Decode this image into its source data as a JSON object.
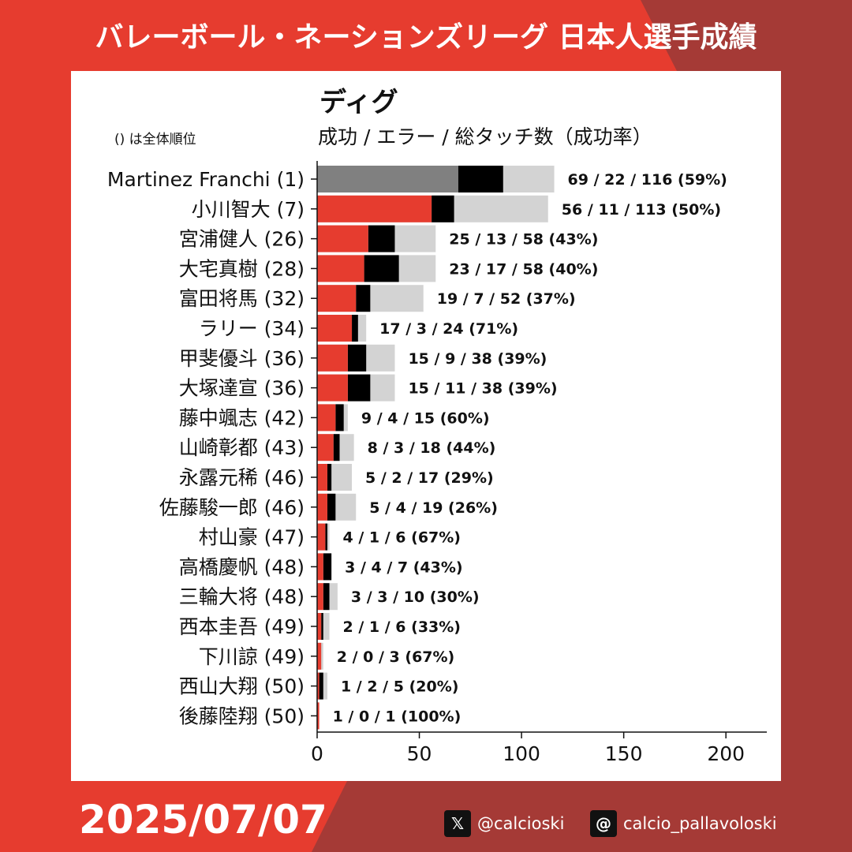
{
  "header": {
    "title": "バレーボール・ネーションズリーグ 日本人選手成績"
  },
  "chart_note": "() は全体順位",
  "footer": {
    "date": "2025/07/07",
    "social": [
      {
        "icon": "x-logo-icon",
        "handle": "@calcioski"
      },
      {
        "icon": "threads-logo-icon",
        "handle": "calcio_pallavoloski"
      }
    ]
  },
  "colors": {
    "background_red": "#e63c2f",
    "background_dark": "#a53a36",
    "success_japan": "#e63c2f",
    "success_top": "#808080",
    "error": "#000000",
    "total": "#d3d3d3"
  },
  "chart_data": {
    "type": "bar",
    "orientation": "horizontal",
    "stacking": "overlay",
    "title": "ディグ",
    "subtitle": "成功 / エラー / 総タッチ数（成功率）",
    "xlim": [
      0,
      220
    ],
    "xticks": [
      0,
      50,
      100,
      150,
      200
    ],
    "grid": false,
    "legend": "none",
    "rows": [
      {
        "label": "Martinez Franchi (1)",
        "success": 69,
        "error": 22,
        "total": 116,
        "annotation": "69 / 22 / 116 (59%)",
        "highlight": true
      },
      {
        "label": "小川智大 (7)",
        "success": 56,
        "error": 11,
        "total": 113,
        "annotation": "56 / 11 / 113 (50%)"
      },
      {
        "label": "宮浦健人 (26)",
        "success": 25,
        "error": 13,
        "total": 58,
        "annotation": "25 / 13 / 58 (43%)"
      },
      {
        "label": "大宅真樹 (28)",
        "success": 23,
        "error": 17,
        "total": 58,
        "annotation": "23 / 17 / 58 (40%)"
      },
      {
        "label": "富田将馬 (32)",
        "success": 19,
        "error": 7,
        "total": 52,
        "annotation": "19 / 7 / 52 (37%)"
      },
      {
        "label": "ラリー (34)",
        "success": 17,
        "error": 3,
        "total": 24,
        "annotation": "17 / 3 / 24 (71%)"
      },
      {
        "label": "甲斐優斗 (36)",
        "success": 15,
        "error": 9,
        "total": 38,
        "annotation": "15 / 9 / 38 (39%)"
      },
      {
        "label": "大塚達宣 (36)",
        "success": 15,
        "error": 11,
        "total": 38,
        "annotation": "15 / 11 / 38 (39%)"
      },
      {
        "label": "藤中颯志 (42)",
        "success": 9,
        "error": 4,
        "total": 15,
        "annotation": "9 / 4 / 15 (60%)"
      },
      {
        "label": "山崎彰都 (43)",
        "success": 8,
        "error": 3,
        "total": 18,
        "annotation": "8 / 3 / 18 (44%)"
      },
      {
        "label": "永露元稀 (46)",
        "success": 5,
        "error": 2,
        "total": 17,
        "annotation": "5 / 2 / 17 (29%)"
      },
      {
        "label": "佐藤駿一郎 (46)",
        "success": 5,
        "error": 4,
        "total": 19,
        "annotation": "5 / 4 / 19 (26%)"
      },
      {
        "label": "村山豪 (47)",
        "success": 4,
        "error": 1,
        "total": 6,
        "annotation": "4 / 1 / 6 (67%)"
      },
      {
        "label": "高橋慶帆 (48)",
        "success": 3,
        "error": 4,
        "total": 7,
        "annotation": "3 / 4 / 7 (43%)"
      },
      {
        "label": "三輪大将 (48)",
        "success": 3,
        "error": 3,
        "total": 10,
        "annotation": "3 / 3 / 10 (30%)"
      },
      {
        "label": "西本圭吾 (49)",
        "success": 2,
        "error": 1,
        "total": 6,
        "annotation": "2 / 1 / 6 (33%)"
      },
      {
        "label": "下川諒 (49)",
        "success": 2,
        "error": 0,
        "total": 3,
        "annotation": "2 / 0 / 3 (67%)"
      },
      {
        "label": "西山大翔 (50)",
        "success": 1,
        "error": 2,
        "total": 5,
        "annotation": "1 / 2 / 5 (20%)"
      },
      {
        "label": "後藤陸翔 (50)",
        "success": 1,
        "error": 0,
        "total": 1,
        "annotation": "1 / 0 / 1 (100%)"
      }
    ]
  }
}
